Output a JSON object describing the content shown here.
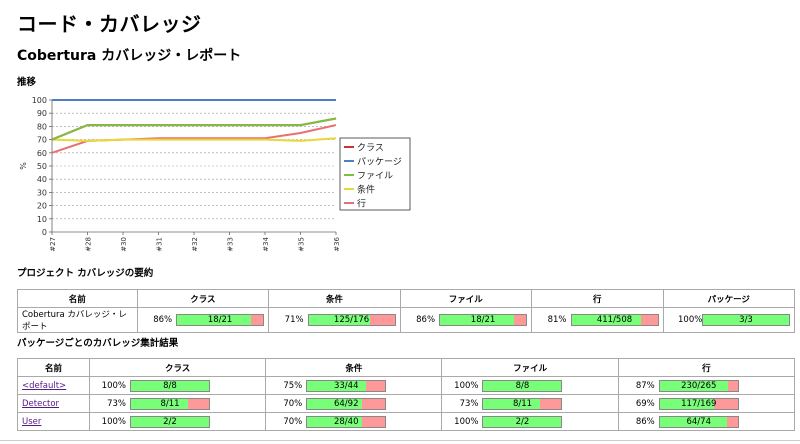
{
  "page": {
    "title": "コード・カバレッジ",
    "subtitle": "Cobertura カバレッジ・レポート"
  },
  "trend": {
    "heading": "推移"
  },
  "chart_data": {
    "type": "line",
    "title": "推移",
    "xlabel": "",
    "ylabel": "%",
    "ylim": [
      0,
      100
    ],
    "yticks": [
      0,
      10,
      20,
      30,
      40,
      50,
      60,
      70,
      80,
      90,
      100
    ],
    "grid": true,
    "legend_position": "right",
    "categories": [
      "#27",
      "#28",
      "#30",
      "#31",
      "#32",
      "#33",
      "#34",
      "#35",
      "#36"
    ],
    "series": [
      {
        "name": "クラス",
        "color": "#cc3333",
        "values": [
          70,
          81,
          81,
          81,
          81,
          81,
          81,
          81,
          86
        ]
      },
      {
        "name": "パッケージ",
        "color": "#4f7fbf",
        "values": [
          100,
          100,
          100,
          100,
          100,
          100,
          100,
          100,
          100
        ]
      },
      {
        "name": "ファイル",
        "color": "#7fbf3f",
        "values": [
          70,
          81,
          81,
          81,
          81,
          81,
          81,
          81,
          86
        ]
      },
      {
        "name": "条件",
        "color": "#e8d83a",
        "values": [
          70,
          69,
          70,
          70,
          70,
          70,
          70,
          69,
          71
        ]
      },
      {
        "name": "行",
        "color": "#e87070",
        "values": [
          60,
          69,
          70,
          71,
          71,
          71,
          71,
          75,
          81
        ]
      }
    ]
  },
  "summary": {
    "heading": "プロジェクト カバレッジの要約",
    "headers": [
      "名前",
      "クラス",
      "条件",
      "ファイル",
      "行",
      "パッケージ"
    ],
    "row": {
      "name": "Cobertura カバレッジ・レポート",
      "cells": [
        {
          "pct": "86%",
          "ratio": "18/21",
          "fill": 86
        },
        {
          "pct": "71%",
          "ratio": "125/176",
          "fill": 71
        },
        {
          "pct": "86%",
          "ratio": "18/21",
          "fill": 86
        },
        {
          "pct": "81%",
          "ratio": "411/508",
          "fill": 81
        },
        {
          "pct": "100%",
          "ratio": "3/3",
          "fill": 100
        }
      ]
    }
  },
  "packages": {
    "heading": "パッケージごとのカバレッジ集計結果",
    "headers": [
      "名前",
      "クラス",
      "条件",
      "ファイル",
      "行"
    ],
    "rows": [
      {
        "name": "<default>",
        "cells": [
          {
            "pct": "100%",
            "ratio": "8/8",
            "fill": 100
          },
          {
            "pct": "75%",
            "ratio": "33/44",
            "fill": 75
          },
          {
            "pct": "100%",
            "ratio": "8/8",
            "fill": 100
          },
          {
            "pct": "87%",
            "ratio": "230/265",
            "fill": 87
          }
        ]
      },
      {
        "name": "Detector",
        "cells": [
          {
            "pct": "73%",
            "ratio": "8/11",
            "fill": 73
          },
          {
            "pct": "70%",
            "ratio": "64/92",
            "fill": 70
          },
          {
            "pct": "73%",
            "ratio": "8/11",
            "fill": 73
          },
          {
            "pct": "69%",
            "ratio": "117/169",
            "fill": 69
          }
        ]
      },
      {
        "name": "User",
        "cells": [
          {
            "pct": "100%",
            "ratio": "2/2",
            "fill": 100
          },
          {
            "pct": "70%",
            "ratio": "28/40",
            "fill": 70
          },
          {
            "pct": "100%",
            "ratio": "2/2",
            "fill": 100
          },
          {
            "pct": "86%",
            "ratio": "64/74",
            "fill": 86
          }
        ]
      }
    ]
  }
}
